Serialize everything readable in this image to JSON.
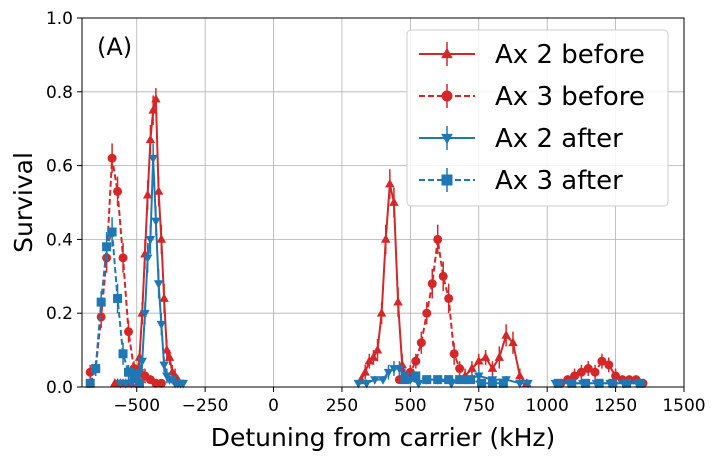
{
  "chart_data": {
    "type": "line",
    "panel_label": "(A)",
    "xlabel": "Detuning from carrier (kHz)",
    "ylabel": "Survival",
    "xlim": [
      -700,
      1500
    ],
    "ylim": [
      0,
      1.0
    ],
    "xticks": [
      -500,
      -250,
      0,
      250,
      500,
      750,
      1000,
      1250,
      1500
    ],
    "xtick_labels": [
      "−500",
      "−250",
      "0",
      "250",
      "500",
      "750",
      "1000",
      "1250",
      "1500"
    ],
    "yticks": [
      0,
      0.2,
      0.4,
      0.6,
      0.8,
      1.0
    ],
    "ytick_labels": [
      "0.0",
      "0.2",
      "0.4",
      "0.6",
      "0.8",
      "1.0"
    ],
    "grid": true,
    "legend_position": "top-right",
    "series": [
      {
        "name": "Ax 2 before",
        "color": "#d62728",
        "marker": "triangle-up",
        "linestyle": "solid",
        "segments": [
          {
            "x": [
              -580,
              -570,
              -560,
              -550,
              -540,
              -530,
              -520,
              -510,
              -500,
              -490,
              -480,
              -470,
              -460,
              -450,
              -440,
              -430,
              -420,
              -410,
              -400,
              -390,
              -380,
              -370,
              -360,
              -350
            ],
            "y": [
              0.01,
              0.01,
              0.01,
              0.01,
              0.01,
              0.01,
              0.01,
              0.02,
              0.03,
              0.08,
              0.2,
              0.36,
              0.52,
              0.67,
              0.75,
              0.78,
              0.53,
              0.4,
              0.24,
              0.1,
              0.08,
              0.04,
              0.03,
              0.02
            ],
            "err": [
              0.01,
              0.01,
              0.01,
              0.01,
              0.01,
              0.01,
              0.01,
              0.01,
              0.02,
              0.02,
              0.03,
              0.04,
              0.04,
              0.04,
              0.04,
              0.03,
              0.04,
              0.04,
              0.04,
              0.03,
              0.02,
              0.02,
              0.02,
              0.01
            ]
          },
          {
            "x": [
              320,
              335,
              350,
              365,
              380,
              395,
              410,
              425,
              440,
              455,
              470,
              485
            ],
            "y": [
              0.02,
              0.04,
              0.07,
              0.08,
              0.1,
              0.2,
              0.4,
              0.55,
              0.5,
              0.23,
              0.06,
              0.02
            ],
            "err": [
              0.01,
              0.02,
              0.02,
              0.02,
              0.03,
              0.03,
              0.04,
              0.04,
              0.04,
              0.04,
              0.03,
              0.01
            ]
          },
          {
            "x": [
              700,
              725,
              750,
              775,
              800,
              825,
              850,
              875,
              900,
              925
            ],
            "y": [
              0.03,
              0.05,
              0.07,
              0.08,
              0.05,
              0.08,
              0.14,
              0.12,
              0.03,
              0.01
            ],
            "err": [
              0.02,
              0.02,
              0.02,
              0.02,
              0.02,
              0.03,
              0.03,
              0.03,
              0.02,
              0.01
            ]
          }
        ]
      },
      {
        "name": "Ax 3 before",
        "color": "#d62728",
        "marker": "circle",
        "linestyle": "dashed",
        "segments": [
          {
            "x": [
              -670,
              -650,
              -630,
              -610,
              -590,
              -570,
              -550,
              -530,
              -510,
              -490,
              -470,
              -450,
              -430,
              -410
            ],
            "y": [
              0.04,
              0.05,
              0.19,
              0.35,
              0.62,
              0.53,
              0.35,
              0.15,
              0.05,
              0.04,
              0.03,
              0.02,
              0.01,
              0.01
            ],
            "err": [
              0.02,
              0.02,
              0.03,
              0.04,
              0.04,
              0.04,
              0.04,
              0.03,
              0.02,
              0.02,
              0.02,
              0.01,
              0.01,
              0.01
            ]
          },
          {
            "x": [
              460,
              480,
              500,
              520,
              540,
              560,
              580,
              600,
              620,
              640,
              660,
              680,
              700
            ],
            "y": [
              0.02,
              0.03,
              0.04,
              0.07,
              0.12,
              0.2,
              0.28,
              0.4,
              0.3,
              0.24,
              0.09,
              0.05,
              0.02
            ],
            "err": [
              0.01,
              0.01,
              0.02,
              0.02,
              0.03,
              0.03,
              0.04,
              0.04,
              0.04,
              0.04,
              0.03,
              0.02,
              0.01
            ]
          },
          {
            "x": [
              1050,
              1075,
              1100,
              1125,
              1150,
              1175,
              1200,
              1225,
              1250,
              1275,
              1300,
              1325,
              1350
            ],
            "y": [
              0.01,
              0.02,
              0.03,
              0.04,
              0.05,
              0.04,
              0.07,
              0.06,
              0.03,
              0.02,
              0.02,
              0.02,
              0.01
            ],
            "err": [
              0.01,
              0.01,
              0.02,
              0.02,
              0.02,
              0.02,
              0.02,
              0.02,
              0.02,
              0.01,
              0.01,
              0.01,
              0.01
            ]
          }
        ]
      },
      {
        "name": "Ax 2 after",
        "color": "#1f77b4",
        "marker": "triangle-down",
        "linestyle": "solid",
        "segments": [
          {
            "x": [
              -560,
              -540,
              -520,
              -500,
              -490,
              -480,
              -470,
              -460,
              -450,
              -440,
              -430,
              -420,
              -410,
              -400,
              -390,
              -380,
              -370,
              -360,
              -350,
              -340,
              -330
            ],
            "y": [
              0.01,
              0.01,
              0.01,
              0.02,
              0.04,
              0.07,
              0.2,
              0.35,
              0.4,
              0.62,
              0.45,
              0.28,
              0.17,
              0.06,
              0.03,
              0.02,
              0.02,
              0.01,
              0.01,
              0.01,
              0.01
            ],
            "err": [
              0.01,
              0.01,
              0.01,
              0.01,
              0.02,
              0.02,
              0.03,
              0.04,
              0.04,
              0.04,
              0.04,
              0.04,
              0.03,
              0.02,
              0.02,
              0.01,
              0.01,
              0.01,
              0.01,
              0.01,
              0.01
            ]
          },
          {
            "x": [
              310,
              340,
              370,
              400,
              420,
              440,
              460,
              480,
              500,
              530,
              560,
              600,
              650,
              700,
              750,
              800,
              850,
              900,
              930
            ],
            "y": [
              0.01,
              0.01,
              0.02,
              0.02,
              0.04,
              0.05,
              0.05,
              0.03,
              0.02,
              0.01,
              0.02,
              0.02,
              0.01,
              0.02,
              0.03,
              0.02,
              0.02,
              0.01,
              0.01
            ],
            "err": [
              0.01,
              0.01,
              0.01,
              0.01,
              0.02,
              0.02,
              0.02,
              0.02,
              0.01,
              0.01,
              0.01,
              0.01,
              0.01,
              0.01,
              0.02,
              0.01,
              0.01,
              0.01,
              0.01
            ]
          },
          {
            "x": [
              1030,
              1080,
              1130,
              1180,
              1230,
              1280,
              1330
            ],
            "y": [
              0.01,
              0.01,
              0.01,
              0.01,
              0.01,
              0.01,
              0.01
            ],
            "err": [
              0.01,
              0.01,
              0.01,
              0.01,
              0.01,
              0.01,
              0.01
            ]
          }
        ]
      },
      {
        "name": "Ax 3 after",
        "color": "#1f77b4",
        "marker": "square",
        "linestyle": "dashed",
        "segments": [
          {
            "x": [
              -670,
              -650,
              -630,
              -610,
              -590,
              -570,
              -550,
              -530,
              -510,
              -490
            ],
            "y": [
              0.01,
              0.05,
              0.23,
              0.38,
              0.42,
              0.24,
              0.09,
              0.04,
              0.03,
              0.01
            ],
            "err": [
              0.01,
              0.02,
              0.03,
              0.04,
              0.04,
              0.04,
              0.03,
              0.02,
              0.02,
              0.01
            ]
          },
          {
            "x": [
              480,
              520,
              560,
              600,
              640,
              680,
              720,
              760,
              800,
              840
            ],
            "y": [
              0.02,
              0.03,
              0.02,
              0.02,
              0.02,
              0.02,
              0.02,
              0.01,
              0.01,
              0.01
            ],
            "err": [
              0.01,
              0.01,
              0.01,
              0.01,
              0.01,
              0.01,
              0.01,
              0.01,
              0.01,
              0.01
            ]
          },
          {
            "x": [
              1040,
              1090,
              1140,
              1190,
              1240,
              1290,
              1340
            ],
            "y": [
              0.01,
              0.01,
              0.01,
              0.01,
              0.01,
              0.01,
              0.01
            ],
            "err": [
              0.01,
              0.01,
              0.01,
              0.01,
              0.01,
              0.01,
              0.01
            ]
          }
        ]
      }
    ]
  }
}
